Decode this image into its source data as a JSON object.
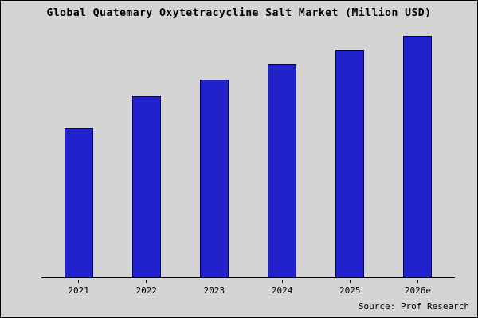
{
  "chart_data": {
    "type": "bar",
    "title": "Global Quatemary Oxytetracycline Salt Market (Million USD)",
    "categories": [
      "2021",
      "2022",
      "2023",
      "2024",
      "2025",
      "2026e"
    ],
    "values": [
      62,
      75,
      82,
      88,
      94,
      100
    ],
    "xlabel": "",
    "ylabel": "",
    "ylim": [
      0,
      100
    ],
    "grid": false,
    "legend": "none",
    "bar_color": "#2222cc",
    "bar_border_color": "#000066",
    "background_color": "#d4d4d4",
    "source": "Source: Prof Research"
  }
}
